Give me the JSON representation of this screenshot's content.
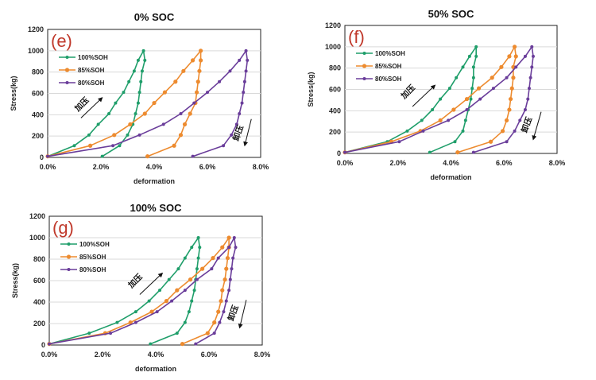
{
  "chart_data": [
    {
      "type": "line",
      "panel_label": "(e)",
      "title": "0% SOC",
      "xlabel": "deformation",
      "ylabel": "Stress(kg)",
      "xlim": [
        0,
        8
      ],
      "ylim": [
        0,
        1200
      ],
      "x_ticks": [
        "0.0%",
        "2.0%",
        "4.0%",
        "6.0%",
        "8.0%"
      ],
      "y_ticks": [
        "0",
        "200",
        "400",
        "600",
        "800",
        "1000",
        "1200"
      ],
      "grid": "horizontal",
      "legend": "top-left",
      "annotations": [
        "加压",
        "卸压"
      ],
      "series": [
        {
          "name": "100%SOH",
          "color": "#1f9e6a",
          "x": [
            0,
            1.0,
            1.55,
            1.9,
            2.3,
            2.55,
            2.85,
            3.05,
            3.25,
            3.4,
            3.6,
            3.65,
            3.55,
            3.5,
            3.45,
            3.4,
            3.3,
            3.2,
            3.0,
            2.7,
            2.05
          ],
          "y": [
            10,
            110,
            210,
            310,
            410,
            510,
            610,
            710,
            810,
            910,
            1000,
            910,
            810,
            710,
            610,
            510,
            410,
            310,
            210,
            110,
            10
          ]
        },
        {
          "name": "85%SOH",
          "color": "#ed8b2f",
          "x": [
            0,
            1.6,
            2.5,
            3.1,
            3.65,
            4.0,
            4.4,
            4.8,
            5.1,
            5.45,
            5.75,
            5.75,
            5.7,
            5.65,
            5.6,
            5.55,
            5.35,
            5.15,
            5.0,
            4.75,
            3.75
          ],
          "y": [
            10,
            110,
            210,
            310,
            410,
            510,
            610,
            710,
            810,
            910,
            1000,
            910,
            810,
            710,
            610,
            510,
            410,
            310,
            210,
            110,
            10
          ]
        },
        {
          "name": "80%SOH",
          "color": "#6a3d9a",
          "x": [
            0,
            2.45,
            3.45,
            4.35,
            5.0,
            5.5,
            6.0,
            6.45,
            6.85,
            7.2,
            7.45,
            7.5,
            7.45,
            7.4,
            7.35,
            7.3,
            7.2,
            7.1,
            6.9,
            6.6,
            5.45
          ],
          "y": [
            10,
            110,
            210,
            310,
            410,
            510,
            610,
            710,
            810,
            910,
            1000,
            910,
            810,
            710,
            610,
            510,
            410,
            310,
            210,
            110,
            10
          ]
        }
      ]
    },
    {
      "type": "line",
      "panel_label": "(f)",
      "title": "50% SOC",
      "xlabel": "deformation",
      "ylabel": "Stress(kg)",
      "xlim": [
        0,
        8
      ],
      "ylim": [
        0,
        1200
      ],
      "x_ticks": [
        "0.0%",
        "2.0%",
        "4.0%",
        "6.0%",
        "8.0%"
      ],
      "y_ticks": [
        "0",
        "200",
        "400",
        "600",
        "800",
        "1000",
        "1200"
      ],
      "grid": "horizontal",
      "legend": "top-left",
      "annotations": [
        "加压",
        "卸压"
      ],
      "series": [
        {
          "name": "100%SOH",
          "color": "#1f9e6a",
          "x": [
            0,
            1.6,
            2.35,
            2.9,
            3.3,
            3.6,
            3.95,
            4.2,
            4.45,
            4.7,
            4.95,
            4.95,
            4.85,
            4.85,
            4.8,
            4.75,
            4.65,
            4.55,
            4.45,
            4.15,
            3.2
          ],
          "y": [
            10,
            110,
            210,
            310,
            410,
            510,
            610,
            710,
            810,
            910,
            1000,
            910,
            810,
            710,
            610,
            510,
            410,
            310,
            210,
            110,
            10
          ]
        },
        {
          "name": "85%SOH",
          "color": "#ed8b2f",
          "x": [
            0,
            1.75,
            2.85,
            3.6,
            4.1,
            4.6,
            5.05,
            5.55,
            5.9,
            6.2,
            6.4,
            6.45,
            6.35,
            6.35,
            6.3,
            6.25,
            6.2,
            6.1,
            5.95,
            5.5,
            4.25
          ],
          "y": [
            10,
            110,
            210,
            310,
            410,
            510,
            610,
            710,
            810,
            910,
            1000,
            910,
            810,
            710,
            610,
            510,
            410,
            310,
            210,
            110,
            10
          ]
        },
        {
          "name": "80%SOH",
          "color": "#6a3d9a",
          "x": [
            0,
            2.05,
            2.95,
            3.9,
            4.6,
            5.1,
            5.6,
            6.1,
            6.45,
            6.8,
            7.05,
            7.1,
            7.05,
            7.0,
            6.95,
            6.9,
            6.8,
            6.6,
            6.4,
            6.1,
            4.85
          ],
          "y": [
            10,
            110,
            210,
            310,
            410,
            510,
            610,
            710,
            810,
            910,
            1000,
            910,
            810,
            710,
            610,
            510,
            410,
            310,
            210,
            110,
            10
          ]
        }
      ]
    },
    {
      "type": "line",
      "panel_label": "(g)",
      "title": "100% SOC",
      "xlabel": "deformation",
      "ylabel": "Stress(kg)",
      "xlim": [
        0,
        8
      ],
      "ylim": [
        0,
        1200
      ],
      "x_ticks": [
        "0.0%",
        "2.0%",
        "4.0%",
        "6.0%",
        "8.0%"
      ],
      "y_ticks": [
        "0",
        "200",
        "400",
        "600",
        "800",
        "1000",
        "1200"
      ],
      "grid": "horizontal",
      "legend": "top-left",
      "annotations": [
        "加压",
        "卸压"
      ],
      "series": [
        {
          "name": "100%SOH",
          "color": "#1f9e6a",
          "x": [
            0,
            1.5,
            2.55,
            3.25,
            3.75,
            4.15,
            4.5,
            4.85,
            5.1,
            5.35,
            5.6,
            5.65,
            5.6,
            5.55,
            5.5,
            5.45,
            5.35,
            5.25,
            5.1,
            4.8,
            3.8
          ],
          "y": [
            10,
            110,
            210,
            310,
            410,
            510,
            610,
            710,
            810,
            910,
            1000,
            910,
            810,
            710,
            610,
            510,
            410,
            310,
            210,
            110,
            10
          ]
        },
        {
          "name": "85%SOH",
          "color": "#ed8b2f",
          "x": [
            0,
            2.1,
            3.05,
            3.85,
            4.4,
            4.8,
            5.3,
            5.75,
            6.15,
            6.5,
            6.75,
            6.75,
            6.7,
            6.65,
            6.6,
            6.5,
            6.45,
            6.35,
            6.2,
            5.95,
            5.0
          ],
          "y": [
            10,
            110,
            210,
            310,
            410,
            510,
            610,
            710,
            810,
            910,
            1000,
            910,
            810,
            710,
            610,
            510,
            410,
            310,
            210,
            110,
            10
          ]
        },
        {
          "name": "80%SOH",
          "color": "#6a3d9a",
          "x": [
            0,
            2.3,
            3.25,
            4.05,
            4.6,
            5.1,
            5.55,
            6.1,
            6.35,
            6.75,
            6.95,
            7.0,
            6.9,
            6.85,
            6.8,
            6.75,
            6.65,
            6.55,
            6.4,
            6.2,
            5.5
          ],
          "y": [
            10,
            110,
            210,
            310,
            410,
            510,
            610,
            710,
            810,
            910,
            1000,
            910,
            810,
            710,
            610,
            510,
            410,
            310,
            210,
            110,
            10
          ]
        }
      ]
    }
  ]
}
